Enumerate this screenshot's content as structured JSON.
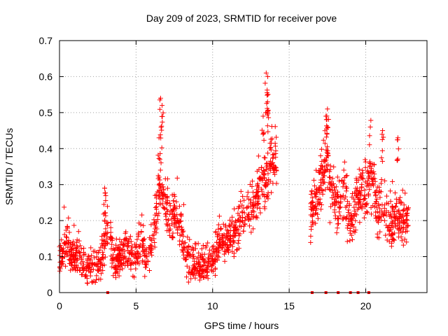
{
  "chart_data": {
    "type": "scatter",
    "title": "Day 209 of 2023, SRMTID for receiver pove",
    "xlabel": "GPS time / hours",
    "ylabel": "SRMTID / TECUs",
    "xlim": [
      0,
      24
    ],
    "ylim": [
      0,
      0.7
    ],
    "xticks": [
      0,
      5,
      10,
      15,
      20
    ],
    "yticks": [
      0,
      0.1,
      0.2,
      0.3,
      0.4,
      0.5,
      0.6,
      0.7
    ],
    "grid": true,
    "marker": "plus",
    "color": "#ff0000",
    "series": [
      {
        "name": "SRMTID",
        "profile": [
          [
            0.0,
            0.09
          ],
          [
            0.3,
            0.13
          ],
          [
            0.5,
            0.15
          ],
          [
            0.8,
            0.1
          ],
          [
            1.5,
            0.09
          ],
          [
            2.0,
            0.07
          ],
          [
            2.5,
            0.08
          ],
          [
            2.8,
            0.1
          ],
          [
            3.0,
            0.15
          ],
          [
            3.3,
            0.18
          ],
          [
            3.5,
            0.09
          ],
          [
            4.0,
            0.1
          ],
          [
            4.5,
            0.11
          ],
          [
            5.0,
            0.1
          ],
          [
            5.3,
            0.14
          ],
          [
            5.6,
            0.1
          ],
          [
            6.0,
            0.12
          ],
          [
            6.3,
            0.2
          ],
          [
            6.6,
            0.3
          ],
          [
            6.9,
            0.25
          ],
          [
            7.2,
            0.2
          ],
          [
            7.6,
            0.22
          ],
          [
            8.0,
            0.17
          ],
          [
            8.4,
            0.08
          ],
          [
            9.0,
            0.07
          ],
          [
            9.5,
            0.08
          ],
          [
            10.0,
            0.08
          ],
          [
            10.5,
            0.14
          ],
          [
            11.0,
            0.14
          ],
          [
            11.5,
            0.17
          ],
          [
            12.0,
            0.22
          ],
          [
            12.5,
            0.22
          ],
          [
            13.0,
            0.28
          ],
          [
            13.5,
            0.3
          ],
          [
            13.8,
            0.35
          ],
          [
            14.1,
            0.37
          ],
          [
            16.5,
            0.22
          ],
          [
            17.0,
            0.28
          ],
          [
            17.4,
            0.38
          ],
          [
            17.8,
            0.27
          ],
          [
            18.2,
            0.23
          ],
          [
            18.6,
            0.3
          ],
          [
            19.0,
            0.19
          ],
          [
            19.5,
            0.27
          ],
          [
            20.0,
            0.29
          ],
          [
            20.4,
            0.33
          ],
          [
            20.8,
            0.22
          ],
          [
            21.2,
            0.22
          ],
          [
            21.6,
            0.17
          ],
          [
            22.0,
            0.22
          ],
          [
            22.4,
            0.2
          ],
          [
            22.8,
            0.19
          ]
        ],
        "noise": 0.035,
        "spikes": [
          {
            "x": 2.95,
            "y": 0.29
          },
          {
            "x": 2.95,
            "y": 0.29
          },
          {
            "x": 6.6,
            "y": 0.54
          },
          {
            "x": 6.7,
            "y": 0.52
          },
          {
            "x": 6.5,
            "y": 0.43
          },
          {
            "x": 13.5,
            "y": 0.61
          },
          {
            "x": 13.6,
            "y": 0.6
          },
          {
            "x": 13.6,
            "y": 0.55
          },
          {
            "x": 13.3,
            "y": 0.49
          },
          {
            "x": 17.5,
            "y": 0.51
          },
          {
            "x": 17.4,
            "y": 0.49
          },
          {
            "x": 20.3,
            "y": 0.46
          },
          {
            "x": 21.1,
            "y": 0.45
          },
          {
            "x": 22.1,
            "y": 0.43
          },
          {
            "x": 17.5,
            "y": 0.46
          }
        ],
        "gaps": [
          [
            3.2,
            3.3
          ],
          [
            14.2,
            16.4
          ]
        ],
        "zero_markers_x": [
          3.15,
          16.5,
          17.4,
          18.2,
          19.0,
          19.5,
          20.2
        ]
      }
    ]
  }
}
